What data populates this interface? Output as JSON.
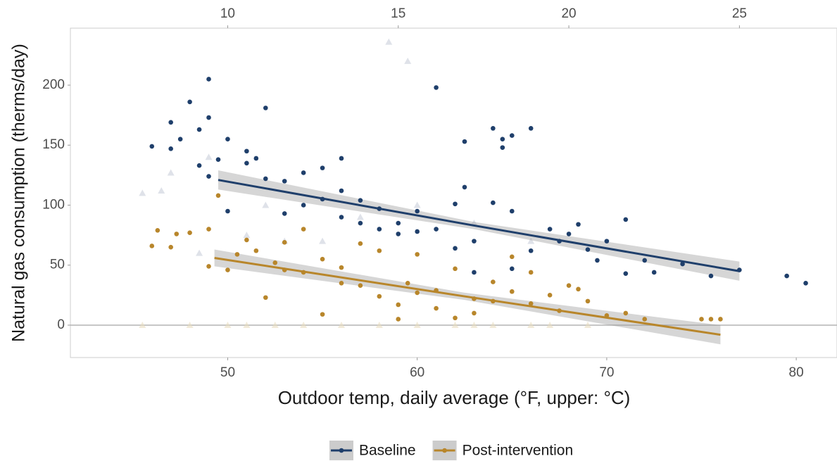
{
  "chart_data": {
    "type": "scatter",
    "x_label": "Outdoor temp, daily average (°F, upper: °C)",
    "y_label": "Natural gas consumption (therms/day)",
    "xlim": [
      41.7,
      82.15
    ],
    "xticks": [
      50,
      60,
      70,
      80
    ],
    "x2lim": [
      5.39,
      27.86
    ],
    "x2ticks": [
      10,
      15,
      20,
      25
    ],
    "ylim": [
      -27,
      247.5
    ],
    "yticks": [
      0,
      50,
      100,
      150,
      200
    ],
    "zero_line": true,
    "legend": "bottom",
    "series": [
      {
        "name": "Baseline",
        "color": "#1f3f6b",
        "x": [
          46,
          47,
          47,
          47.5,
          48,
          48.5,
          48.5,
          49,
          49,
          49,
          49.5,
          50,
          50,
          51,
          51,
          51.5,
          52,
          52,
          53,
          53,
          54,
          54,
          55,
          55,
          56,
          56,
          56,
          57,
          57,
          58,
          58,
          59,
          59,
          60,
          60,
          61,
          61,
          62,
          62,
          62.5,
          62.5,
          63,
          63,
          64,
          64,
          64.5,
          64.5,
          65,
          65,
          65,
          66,
          66,
          67,
          67.5,
          68,
          68.5,
          69,
          69.5,
          70,
          71,
          71,
          72,
          72.5,
          74,
          75.5,
          77,
          79.5,
          80.5
        ],
        "values": [
          149,
          169,
          147,
          155,
          186,
          163,
          133,
          205,
          173,
          124,
          138,
          155,
          95,
          145,
          135,
          139,
          181,
          122,
          120,
          93,
          127,
          100,
          131,
          105,
          139,
          112,
          90,
          104,
          85,
          97,
          80,
          85,
          76,
          95,
          78,
          198,
          80,
          101,
          64,
          153,
          115,
          70,
          44,
          164,
          102,
          155,
          148,
          158,
          95,
          47,
          164,
          62,
          80,
          70,
          76,
          84,
          63,
          54,
          70,
          88,
          43,
          54,
          44,
          51,
          41,
          46,
          41,
          35
        ],
        "fit": {
          "x": [
            49.5,
            63,
            77
          ],
          "values": [
            121,
            83,
            45
          ],
          "lower": [
            113,
            80,
            37
          ],
          "upper": [
            129,
            86,
            53
          ]
        }
      },
      {
        "name": "Post-intervention",
        "color": "#b8862b",
        "x": [
          46,
          46.3,
          47,
          47.3,
          48,
          49,
          49,
          49.5,
          50,
          50.5,
          51,
          51.5,
          52,
          52.5,
          53,
          53,
          54,
          54,
          55,
          55,
          56,
          56,
          57,
          57,
          58,
          58,
          59,
          59,
          59.5,
          60,
          60,
          61,
          61,
          62,
          62,
          63,
          63,
          64,
          64,
          65,
          65,
          66,
          66,
          67,
          67.5,
          68,
          68.5,
          69,
          70,
          71,
          72,
          75,
          75.5,
          76
        ],
        "values": [
          66,
          79,
          65,
          76,
          77,
          80,
          49,
          108,
          46,
          59,
          71,
          62,
          23,
          52,
          69,
          46,
          80,
          44,
          9,
          55,
          35,
          48,
          68,
          33,
          24,
          62,
          17,
          5,
          35,
          27,
          59,
          14,
          29,
          47,
          6,
          22,
          10,
          36,
          20,
          28,
          57,
          18,
          44,
          25,
          12,
          33,
          30,
          20,
          8,
          10,
          5,
          5,
          5,
          5
        ],
        "fit": {
          "x": [
            49.3,
            62.5,
            76
          ],
          "values": [
            56,
            24,
            -8
          ],
          "lower": [
            49,
            21,
            -16
          ],
          "upper": [
            63,
            27,
            0
          ]
        }
      }
    ],
    "faint_series": [
      {
        "color": "#c9cedb",
        "x": [
          45.5,
          46.5,
          47,
          49,
          58.5,
          59.5,
          52,
          53,
          55,
          51,
          57,
          60,
          63,
          66,
          48.5
        ],
        "values": [
          110,
          112,
          127,
          140,
          236,
          220,
          100,
          70,
          70,
          75,
          90,
          100,
          85,
          70,
          60
        ]
      },
      {
        "color": "#e8dcc0",
        "x": [
          45.5,
          48,
          50,
          51,
          52.5,
          54,
          56,
          58,
          60,
          62,
          63,
          64,
          66,
          67,
          69
        ],
        "values": [
          0,
          0,
          0,
          0,
          0,
          0,
          0,
          0,
          0,
          0,
          0,
          0,
          0,
          0,
          0
        ]
      }
    ]
  }
}
